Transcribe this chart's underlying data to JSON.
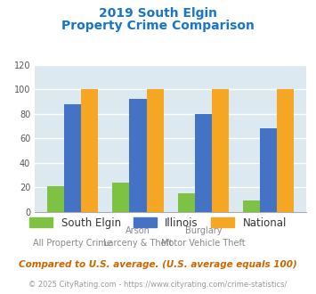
{
  "title_line1": "2019 South Elgin",
  "title_line2": "Property Crime Comparison",
  "groups": [
    {
      "label_top": "",
      "label_bottom": "All Property Crime",
      "se": 21,
      "il": 88,
      "nat": 100
    },
    {
      "label_top": "Arson",
      "label_bottom": "Larceny & Theft",
      "se": 24,
      "il": 92,
      "nat": 100
    },
    {
      "label_top": "Burglary",
      "label_bottom": "Motor Vehicle Theft",
      "se": 15,
      "il": 80,
      "nat": 100
    },
    {
      "label_top": "",
      "label_bottom": "",
      "se": 9,
      "il": 68,
      "nat": 100
    }
  ],
  "bar_color_se": "#7dc242",
  "bar_color_il": "#4472c4",
  "bar_color_nat": "#f5a623",
  "ylim": [
    0,
    120
  ],
  "yticks": [
    0,
    20,
    40,
    60,
    80,
    100,
    120
  ],
  "title_color": "#1874cd",
  "bg_color": "#dce9f0",
  "grid_color": "#ffffff",
  "legend_labels": [
    "South Elgin",
    "Illinois",
    "National"
  ],
  "footnote1": "Compared to U.S. average. (U.S. average equals 100)",
  "footnote2": "© 2025 CityRating.com - https://www.cityrating.com/crime-statistics/",
  "footnote1_color": "#cc6600",
  "footnote2_color": "#999999",
  "url_color": "#4472c4",
  "label_top_color": "#888888",
  "label_bottom_color": "#888888"
}
